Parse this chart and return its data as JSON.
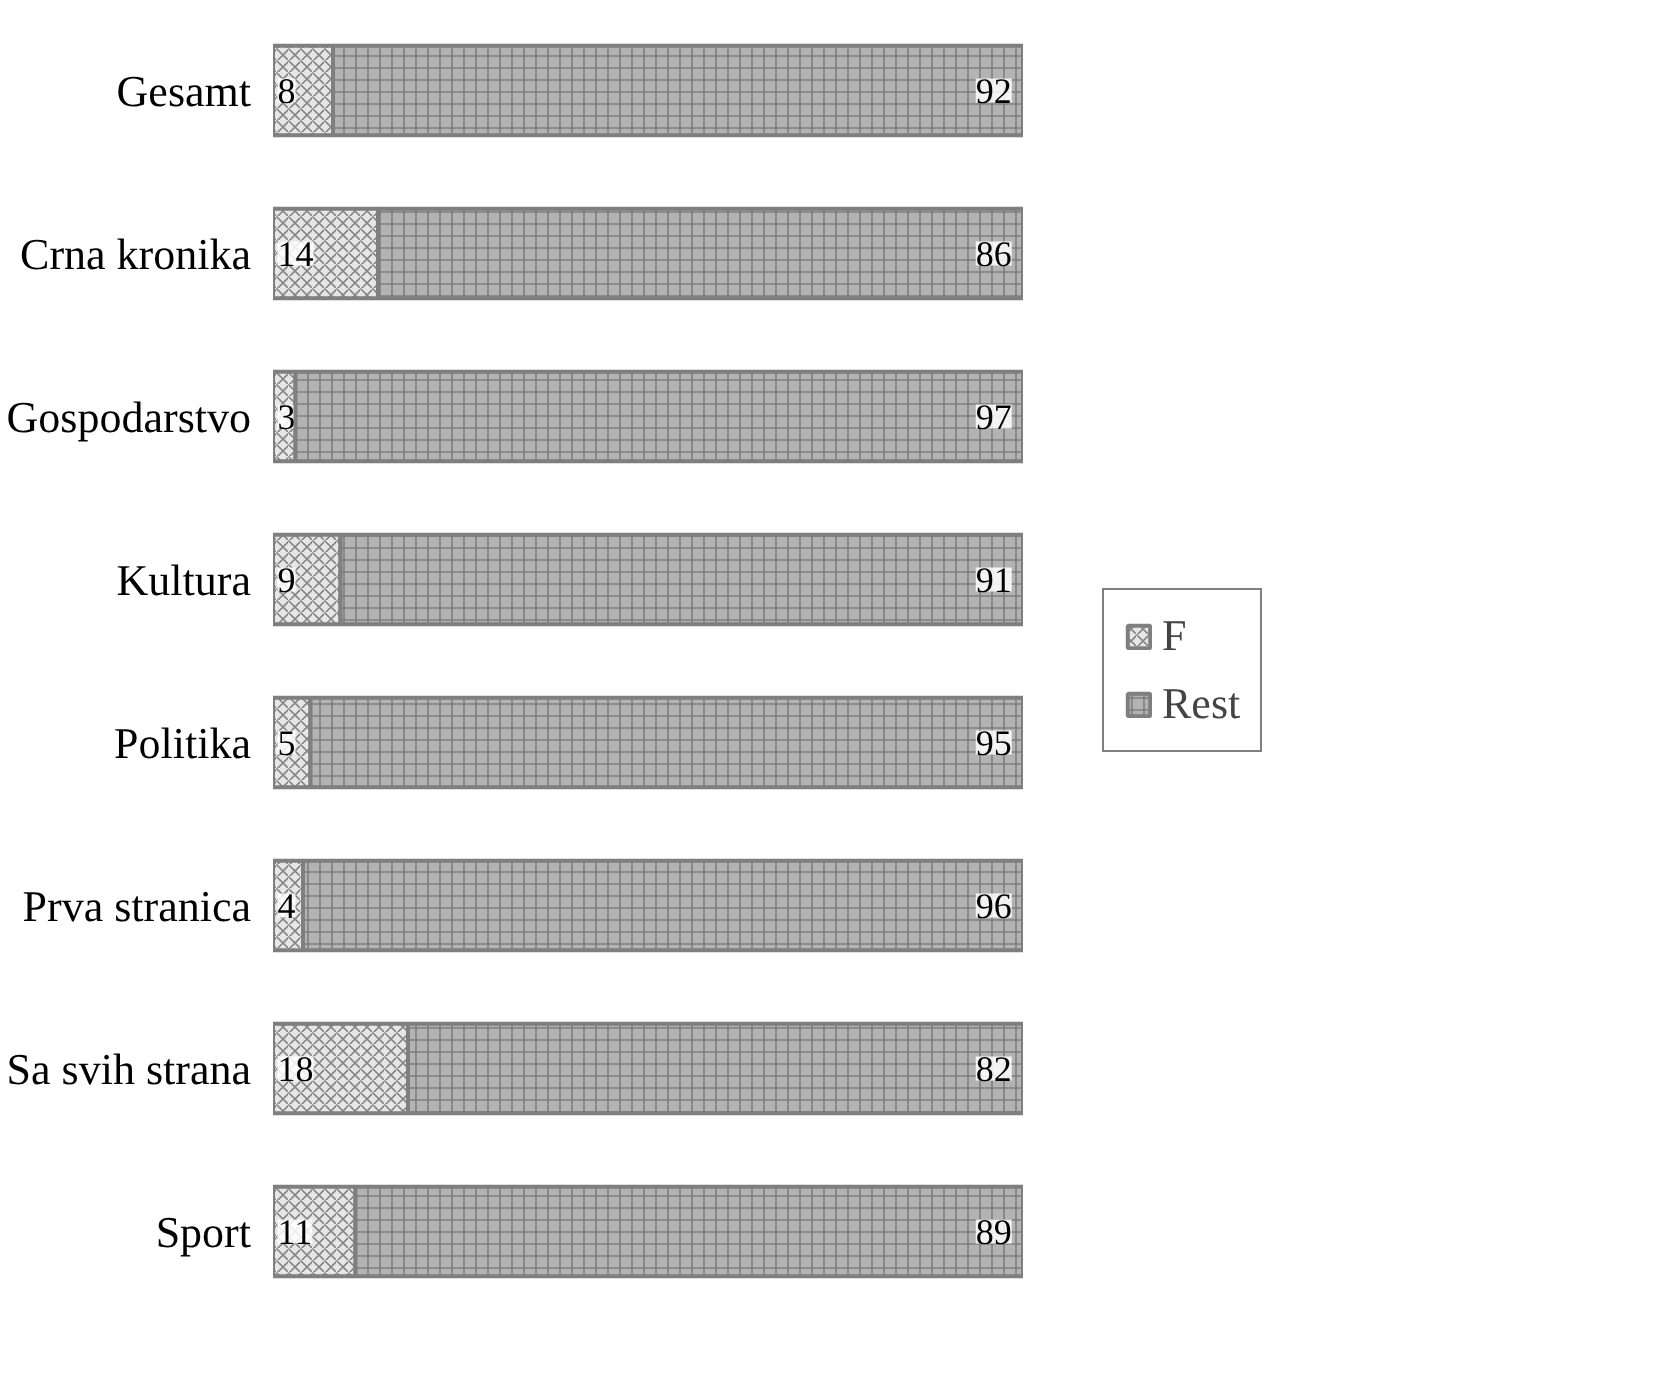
{
  "chart_data": {
    "type": "bar",
    "orientation": "horizontal",
    "stacked": true,
    "data_labels": true,
    "legend": "right",
    "grid": false,
    "tick_labels": "y",
    "xlim": [
      0,
      100
    ],
    "categories": [
      "Gesamt",
      "Crna kronika",
      "Gospodarstvo",
      "Kultura",
      "Politika",
      "Prva stranica",
      "Sa svih strana",
      "Sport"
    ],
    "series": [
      {
        "name": "F",
        "color": "#e6e6e6",
        "values": [
          8,
          14,
          3,
          9,
          5,
          4,
          18,
          11
        ]
      },
      {
        "name": "Rest",
        "color": "#b3b3b3",
        "values": [
          92,
          86,
          97,
          91,
          95,
          96,
          82,
          89
        ]
      }
    ]
  }
}
